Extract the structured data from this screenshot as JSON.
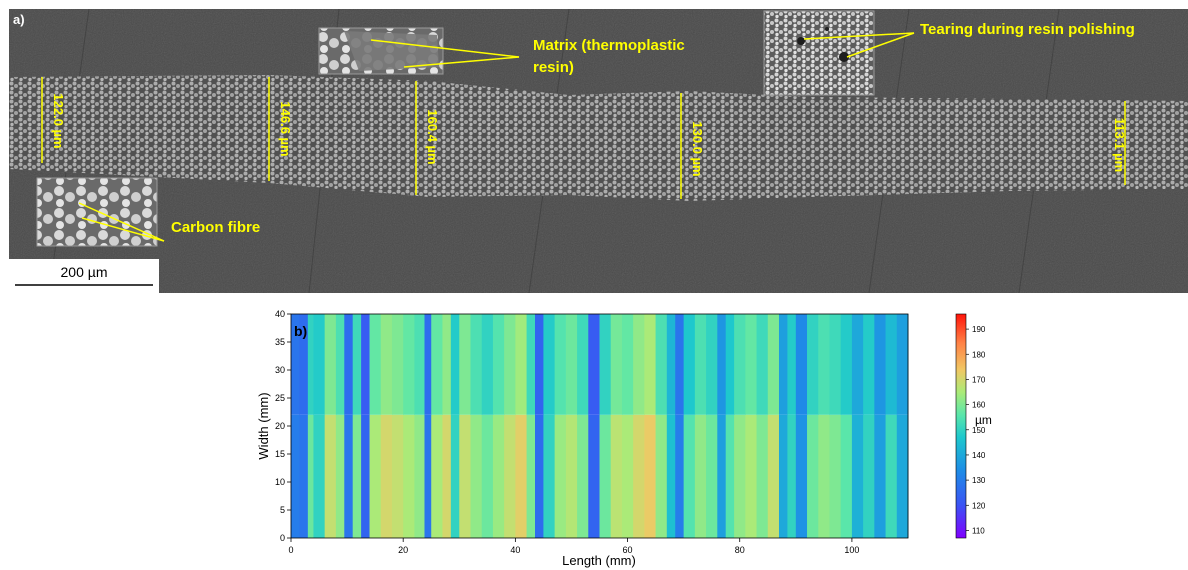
{
  "panel_a": {
    "label": "a)",
    "scale_bar": "200 µm",
    "annotations": {
      "matrix_line1": "Matrix (thermoplastic",
      "matrix_line2": "resin)",
      "tearing": "Tearing during resin polishing",
      "carbon_fibre": "Carbon fibre"
    },
    "thickness_labels": [
      "122.0 µm",
      "146.6 µm",
      "160.4 µm",
      "130.0 µm",
      "113.1 µm"
    ],
    "colors": {
      "annotation": "#ffff00",
      "resin": "#4a4a4a",
      "fibre_band": "#8c8c8c"
    }
  },
  "chart_data": {
    "type": "heatmap",
    "panel_label": "b)",
    "xlabel": "Length (mm)",
    "ylabel": "Width (mm)",
    "xlim": [
      0,
      110
    ],
    "ylim": [
      0,
      40
    ],
    "xticks": [
      0,
      20,
      40,
      60,
      80,
      100
    ],
    "yticks": [
      0,
      5,
      10,
      15,
      20,
      25,
      30,
      35,
      40
    ],
    "colorbar": {
      "label": "µm",
      "range": [
        107,
        196
      ],
      "ticks": [
        110,
        120,
        130,
        140,
        150,
        160,
        170,
        180,
        190
      ]
    },
    "thickness_profile_um": [
      {
        "x": 0,
        "value": 130
      },
      {
        "x": 1.5,
        "value": 128
      },
      {
        "x": 3,
        "value": 158
      },
      {
        "x": 4,
        "value": 150
      },
      {
        "x": 6,
        "value": 168
      },
      {
        "x": 8,
        "value": 162
      },
      {
        "x": 9.5,
        "value": 128
      },
      {
        "x": 11,
        "value": 160
      },
      {
        "x": 12.5,
        "value": 124
      },
      {
        "x": 14,
        "value": 165
      },
      {
        "x": 16,
        "value": 170
      },
      {
        "x": 18,
        "value": 168
      },
      {
        "x": 20,
        "value": 165
      },
      {
        "x": 22,
        "value": 162
      },
      {
        "x": 23.8,
        "value": 128
      },
      {
        "x": 25,
        "value": 165
      },
      {
        "x": 27,
        "value": 170
      },
      {
        "x": 28.5,
        "value": 150
      },
      {
        "x": 30,
        "value": 168
      },
      {
        "x": 32,
        "value": 162
      },
      {
        "x": 34,
        "value": 158
      },
      {
        "x": 36,
        "value": 163
      },
      {
        "x": 38,
        "value": 168
      },
      {
        "x": 40,
        "value": 172
      },
      {
        "x": 42,
        "value": 160
      },
      {
        "x": 43.5,
        "value": 126
      },
      {
        "x": 45,
        "value": 150
      },
      {
        "x": 47,
        "value": 163
      },
      {
        "x": 49,
        "value": 166
      },
      {
        "x": 51,
        "value": 160
      },
      {
        "x": 53,
        "value": 124
      },
      {
        "x": 55,
        "value": 158
      },
      {
        "x": 57,
        "value": 167
      },
      {
        "x": 59,
        "value": 165
      },
      {
        "x": 61,
        "value": 170
      },
      {
        "x": 63,
        "value": 173
      },
      {
        "x": 65,
        "value": 162
      },
      {
        "x": 67,
        "value": 145
      },
      {
        "x": 68.5,
        "value": 130
      },
      {
        "x": 70,
        "value": 155
      },
      {
        "x": 72,
        "value": 162
      },
      {
        "x": 74,
        "value": 158
      },
      {
        "x": 76,
        "value": 138
      },
      {
        "x": 77.5,
        "value": 155
      },
      {
        "x": 79,
        "value": 162
      },
      {
        "x": 81,
        "value": 165
      },
      {
        "x": 83,
        "value": 160
      },
      {
        "x": 85,
        "value": 168
      },
      {
        "x": 87,
        "value": 140
      },
      {
        "x": 88.5,
        "value": 150
      },
      {
        "x": 90,
        "value": 135
      },
      {
        "x": 92,
        "value": 158
      },
      {
        "x": 94,
        "value": 162
      },
      {
        "x": 96,
        "value": 160
      },
      {
        "x": 98,
        "value": 156
      },
      {
        "x": 100,
        "value": 142
      },
      {
        "x": 102,
        "value": 150
      },
      {
        "x": 104,
        "value": 138
      },
      {
        "x": 106,
        "value": 152
      },
      {
        "x": 108,
        "value": 140
      },
      {
        "x": 110,
        "value": 150
      }
    ]
  }
}
